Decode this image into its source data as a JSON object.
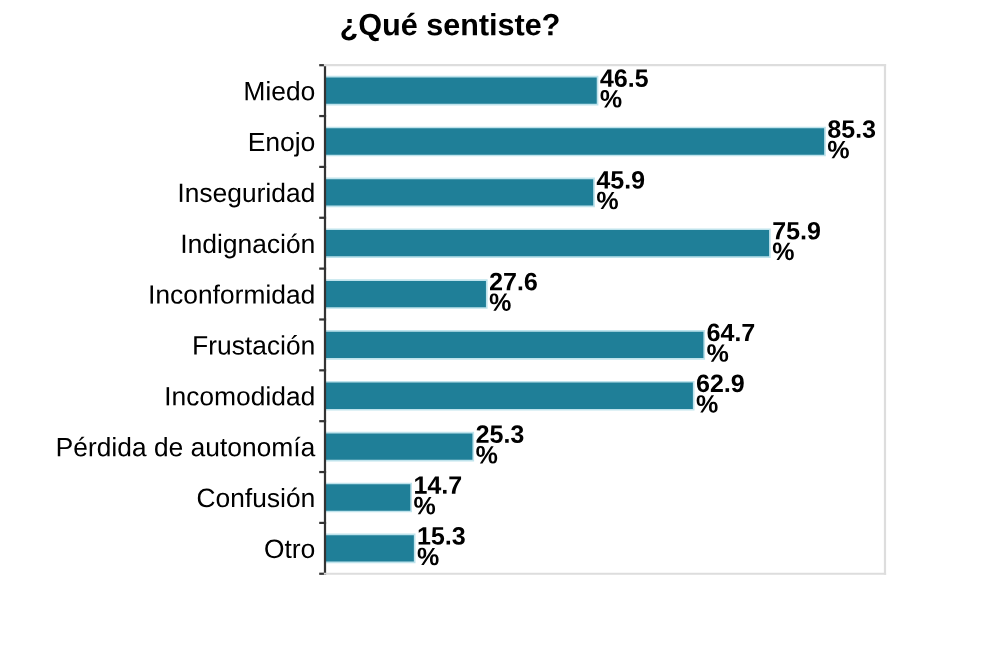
{
  "chart_data": {
    "type": "bar",
    "orientation": "horizontal",
    "title": "¿Qué sentiste?",
    "categories": [
      "Miedo",
      "Enojo",
      "Inseguridad",
      "Indignación",
      "Inconformidad",
      "Frustación",
      "Incomodidad",
      "Pérdida de autonomía",
      "Confusión",
      "Otro"
    ],
    "values": [
      46.5,
      85.3,
      45.9,
      75.9,
      27.6,
      64.7,
      62.9,
      25.3,
      14.7,
      15.3
    ],
    "value_labels": [
      "46.5 %",
      "85.3 %",
      "45.9 %",
      "75.9 %",
      "27.6 %",
      "64.7 %",
      "62.9 %",
      "25.3 %",
      "14.7 %",
      "15.3 %"
    ],
    "color": "#1f7f98",
    "grid": false,
    "legend": false
  }
}
